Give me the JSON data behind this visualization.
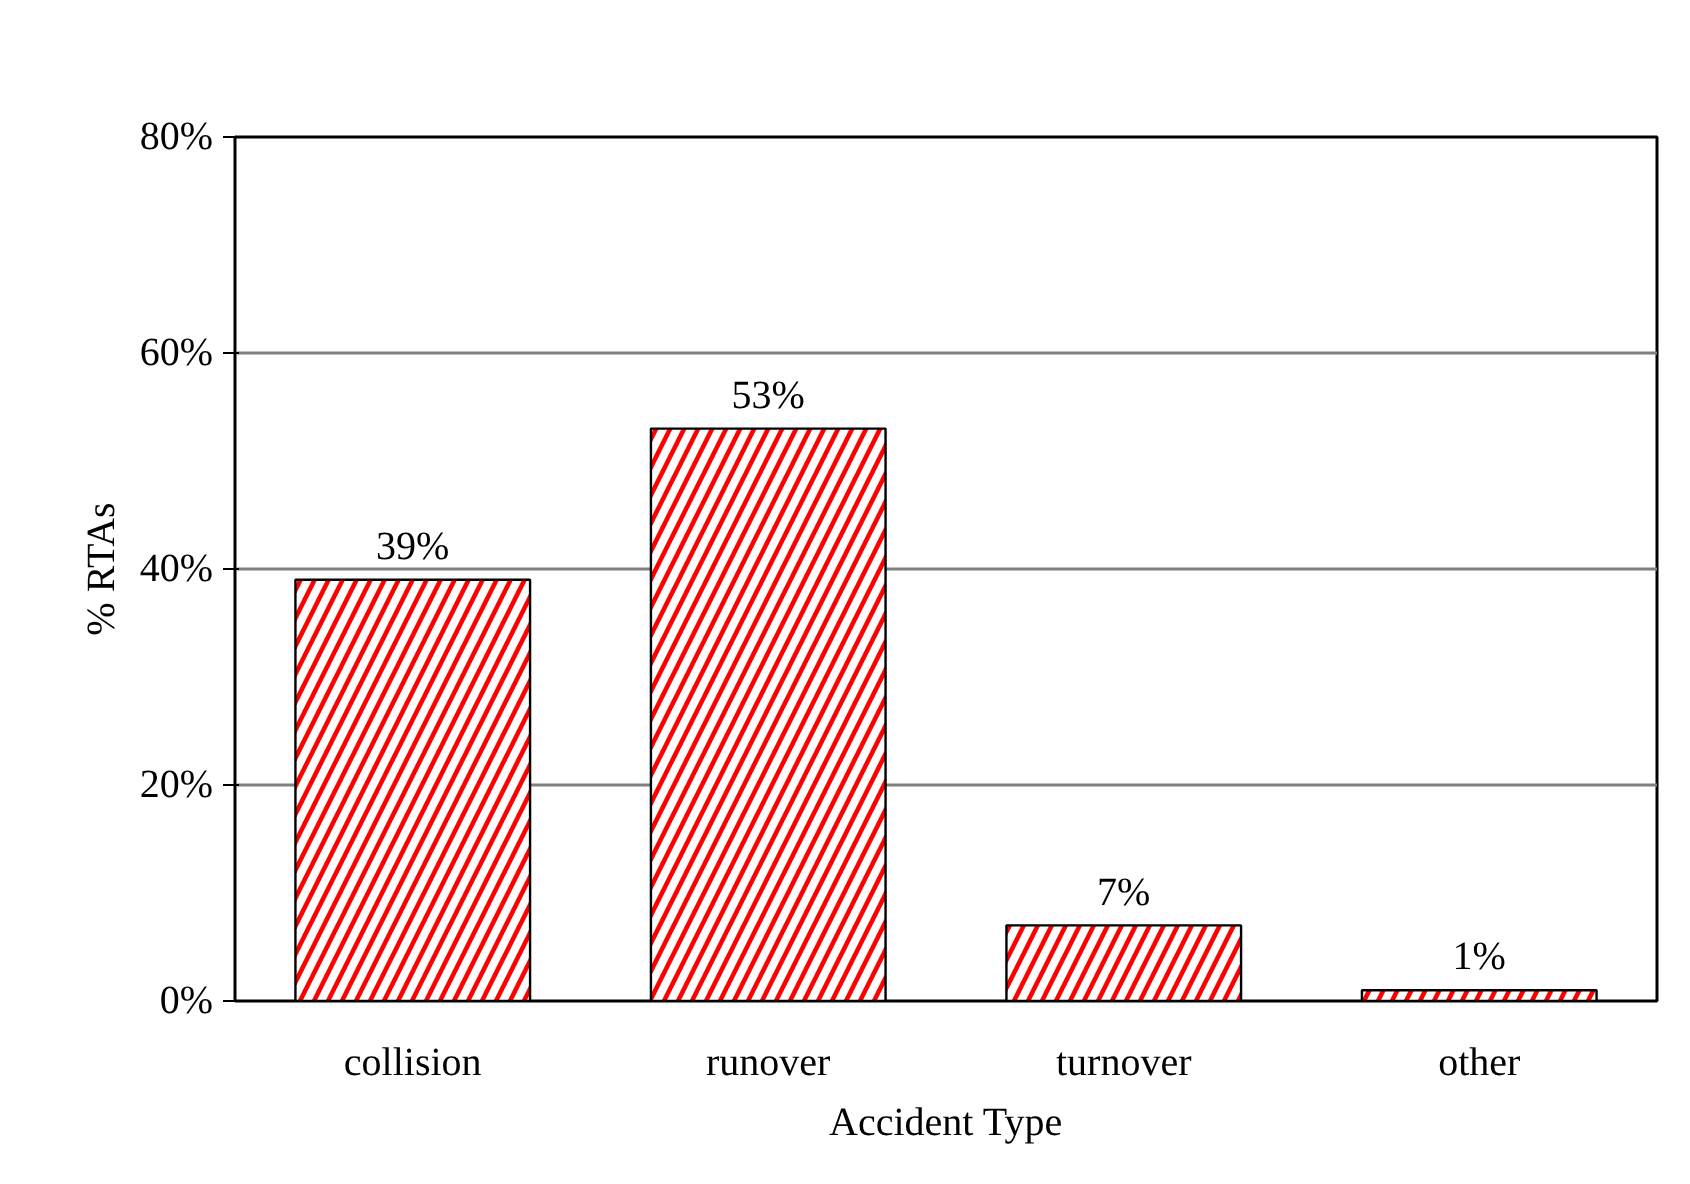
{
  "chart_data": {
    "type": "bar",
    "xlabel": "Accident Type",
    "ylabel": "% RTAs",
    "categories": [
      "collision",
      "runover",
      "turnover",
      "other"
    ],
    "values": [
      39,
      53,
      7,
      1
    ],
    "color": "#ff0000",
    "value_labels": [
      "39%",
      "53%",
      "7%",
      "1%"
    ],
    "ylim": [
      0,
      80
    ],
    "yticks": [
      {
        "value": 0,
        "label": "0%"
      },
      {
        "value": 20,
        "label": "20%"
      },
      {
        "value": 40,
        "label": "40%"
      },
      {
        "value": 60,
        "label": "60%"
      },
      {
        "value": 80,
        "label": "80%"
      }
    ],
    "grid": "y"
  }
}
